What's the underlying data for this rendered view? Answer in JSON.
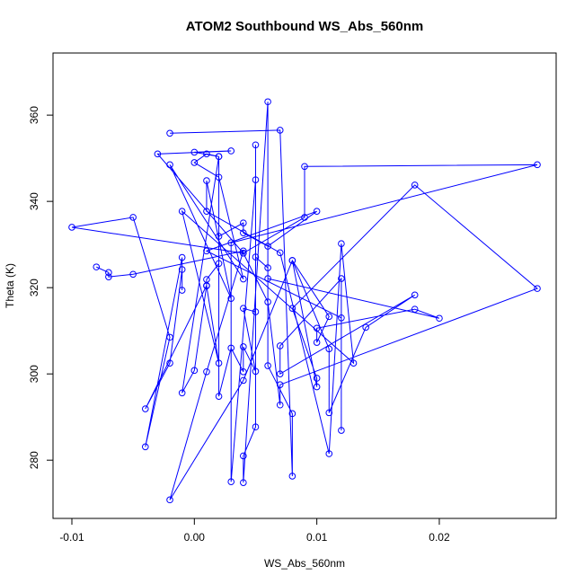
{
  "chart_data": {
    "type": "line",
    "title": "ATOM2 Southbound WS_Abs_560nm",
    "x_label": "WS_Abs_560nm",
    "y_label": "Theta (K)",
    "xlim": [
      -0.01154,
      0.02954
    ],
    "ylim": [
      266.5,
      374.4
    ],
    "xticks": [
      -0.01,
      {
        "value": 0,
        "label": "0.00"
      },
      0.01,
      0.02
    ],
    "yticks": [
      280,
      300,
      320,
      340,
      360
    ],
    "markers": true,
    "series": [
      {
        "name": "WS_Abs_560nm",
        "color": "#0000ff",
        "x": [
          -0.002,
          0.007,
          0.008,
          0.008,
          0.006,
          0.006,
          0.004,
          0.004,
          0.005,
          0.005,
          0.005,
          0.003,
          0.003,
          0.028,
          0.009,
          0.009,
          0.004,
          -0.003,
          0.003,
          0.0,
          0.002,
          0.001,
          0.0,
          0.002,
          0.004,
          -0.002,
          0.003,
          0.001,
          0.001,
          0.007,
          0.011,
          0.012,
          0.013,
          -0.001,
          0.002,
          0.001,
          0.001,
          0.002,
          0.002,
          0.004,
          0.004,
          0.006,
          0.01,
          0.001,
          0.012,
          0.012,
          0.012,
          0.007,
          0.007,
          0.018,
          0.014,
          0.011,
          0.011,
          0.008,
          0.01,
          0.01,
          0.008,
          0.018,
          0.028,
          0.007,
          0.007,
          0.006,
          0.004,
          -0.01,
          -0.005,
          -0.002,
          -0.004,
          -0.001,
          -0.001,
          -0.001,
          -0.002,
          -0.004,
          0.001,
          0.0,
          -0.001,
          0.002,
          0.002,
          0.003,
          0.004,
          0.004,
          0.005,
          0.004,
          0.005,
          0.005,
          0.006,
          0.006,
          0.02,
          0.018,
          0.01,
          0.01,
          0.011,
          0.008,
          0.004,
          -0.002,
          0.001,
          0.004,
          -0.005,
          -0.007,
          -0.007,
          -0.008
        ],
        "values": [
          355.8,
          356.5,
          276.3,
          290.8,
          301.9,
          363.1,
          274.8,
          281.0,
          287.7,
          353.1,
          345.0,
          275.0,
          330.4,
          348.5,
          348.1,
          336.3,
          328.0,
          351.0,
          351.7,
          351.4,
          350.4,
          351.0,
          349.0,
          345.6,
          322.0,
          348.5,
          317.5,
          344.8,
          337.7,
          328.1,
          281.5,
          330.2,
          302.5,
          337.7,
          302.5,
          320.4,
          321.9,
          325.6,
          331.9,
          335.0,
          332.7,
          329.6,
          337.7,
          328.5,
          313.0,
          286.9,
          322.1,
          306.5,
          300.0,
          318.3,
          310.8,
          291.0,
          305.8,
          326.3,
          297.0,
          299.0,
          315.2,
          343.8,
          319.8,
          297.5,
          292.8,
          316.7,
          328.0,
          334.0,
          336.3,
          308.5,
          283.1,
          327.0,
          319.4,
          324.2,
          302.5,
          291.9,
          320.5,
          300.8,
          295.6,
          350.4,
          294.8,
          306.0,
          300.5,
          306.3,
          300.6,
          315.2,
          314.4,
          327.1,
          324.6,
          322.1,
          312.9,
          315.0,
          310.6,
          307.3,
          313.3,
          326.3,
          298.5,
          270.8,
          300.5,
          328.5,
          323.1,
          322.5,
          323.5,
          324.8
        ]
      }
    ]
  }
}
